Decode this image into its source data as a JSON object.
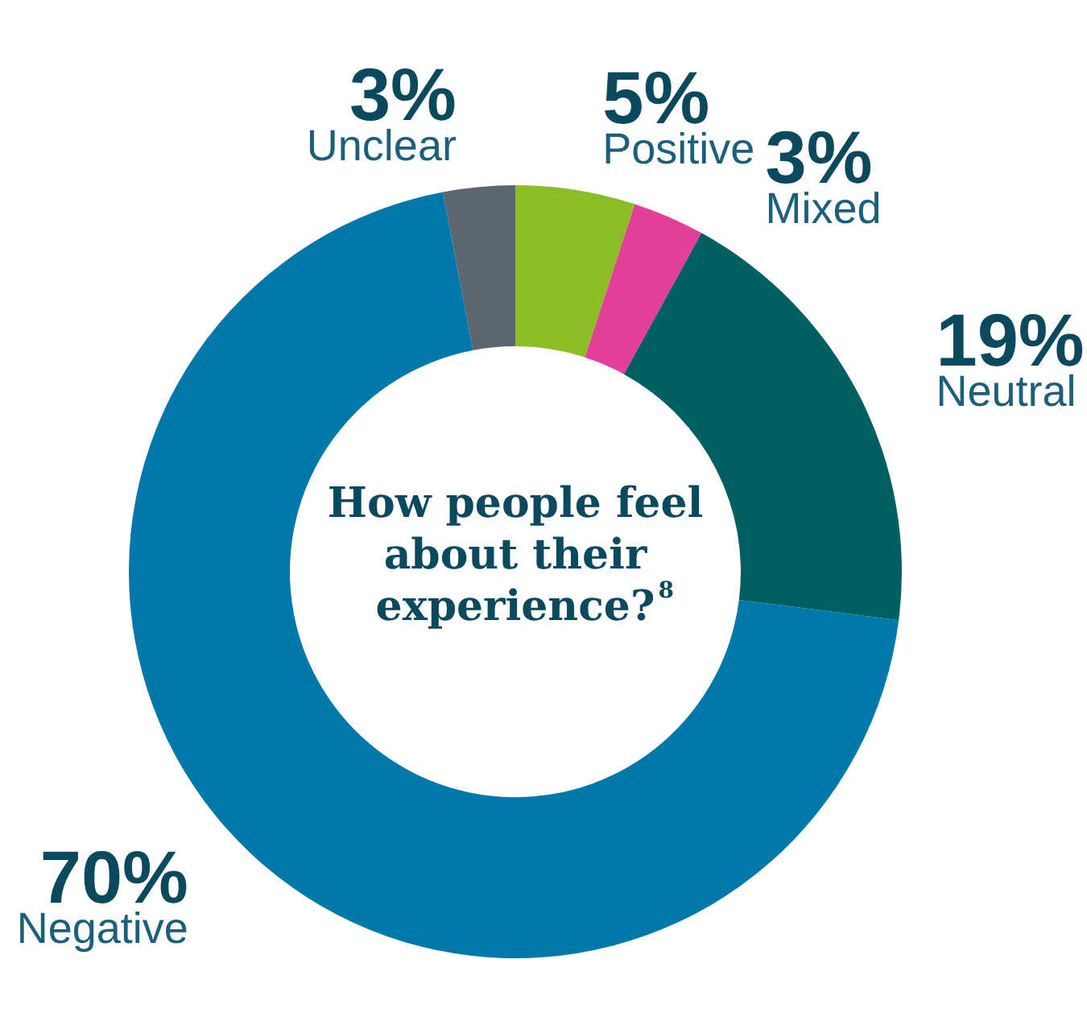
{
  "chart_data": {
    "type": "donut",
    "title": "How people feel about their experience?$^{8}$",
    "categories": [
      "Positive",
      "Mixed",
      "Neutral",
      "Negative",
      "Unclear"
    ],
    "values": [
      5,
      3,
      19,
      70,
      3
    ],
    "value_labels": [
      "5%",
      "3%",
      "19%",
      "70%",
      "3%"
    ],
    "colors": [
      "#8cbd26",
      "#e43f98",
      "#005f60",
      "#0079aa",
      "#5b6670"
    ]
  }
}
